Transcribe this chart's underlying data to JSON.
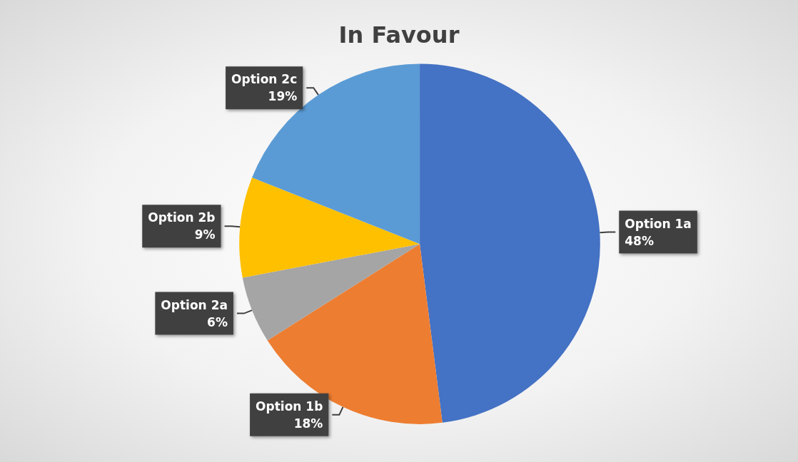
{
  "chart_data": {
    "type": "pie",
    "title": "In Favour",
    "categories": [
      "Option 1a",
      "Option 1b",
      "Option 2a",
      "Option 2b",
      "Option 2c"
    ],
    "values": [
      48,
      18,
      6,
      9,
      19
    ],
    "colors": [
      "#4472c4",
      "#ed7d31",
      "#a5a5a5",
      "#ffc000",
      "#5b9bd5"
    ],
    "value_labels": [
      "48%",
      "18%",
      "6%",
      "9%",
      "19%"
    ],
    "legend": false
  }
}
